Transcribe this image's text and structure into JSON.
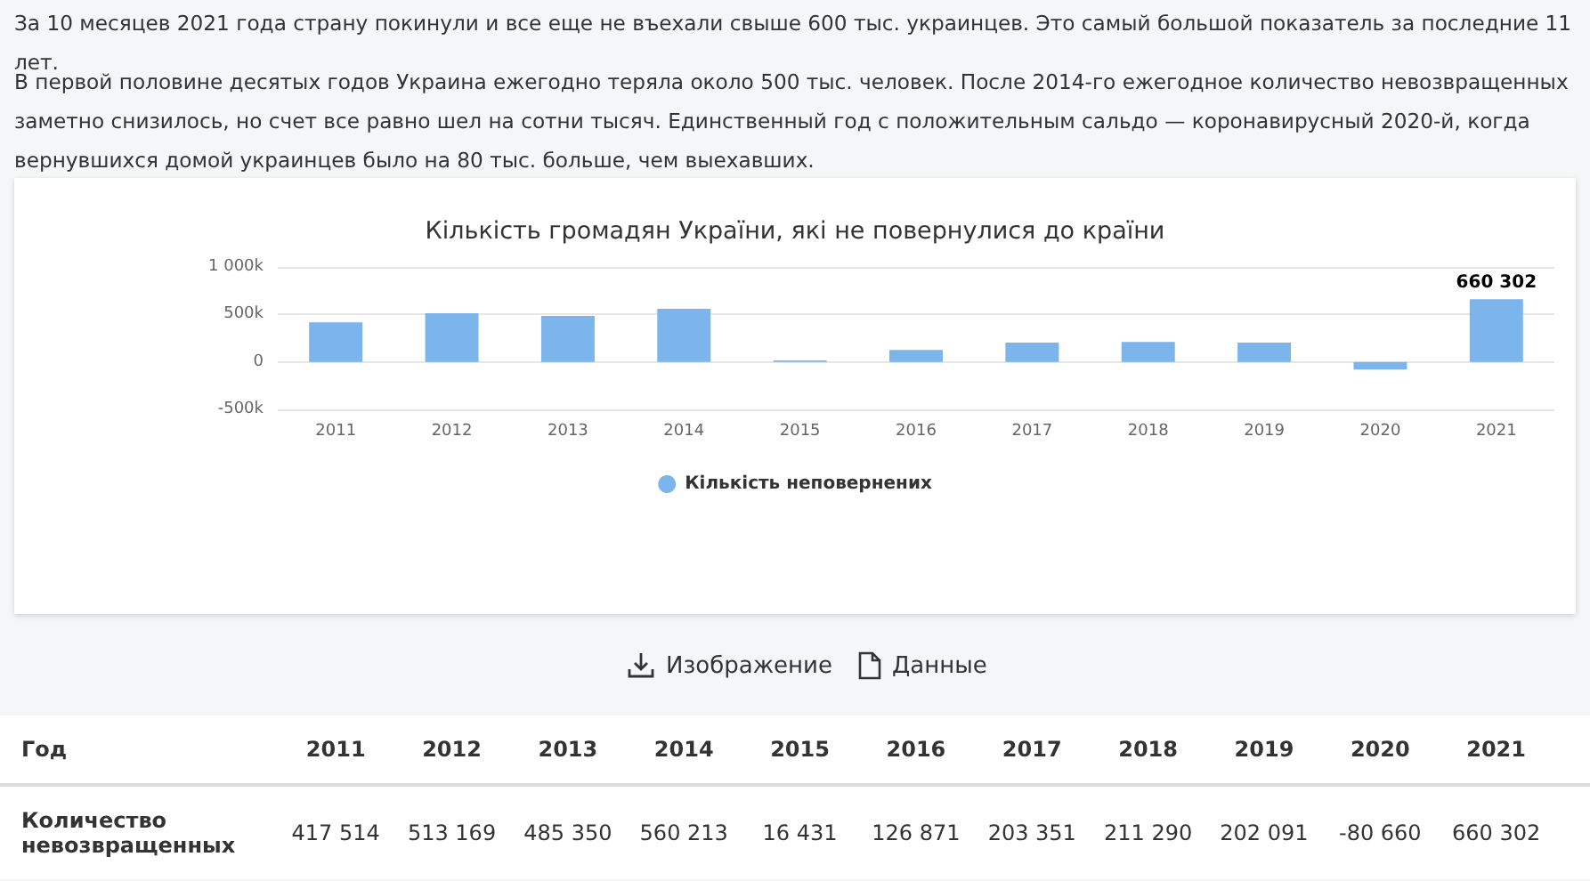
{
  "chart_data": {
    "type": "bar",
    "title": "Кількість громадян України, які не повернулися до країни",
    "categories": [
      "2011",
      "2012",
      "2013",
      "2014",
      "2015",
      "2016",
      "2017",
      "2018",
      "2019",
      "2020",
      "2021"
    ],
    "series": [
      {
        "name": "Кількість неповернених",
        "color": "#7cb5ec",
        "values": [
          417514,
          513169,
          485350,
          560213,
          16431,
          126871,
          203351,
          211290,
          202091,
          -80660,
          660302
        ],
        "value_labels": [
          "417 514",
          "513 169",
          "485 350",
          "560 213",
          "16 431",
          "126 871",
          "203 351",
          "211 290",
          "202 091",
          "-80 660",
          "660 302"
        ]
      }
    ],
    "ylim": [
      -500000,
      1000000
    ],
    "yticks": [
      {
        "value": -500000,
        "label": "-500k"
      },
      0,
      {
        "value": 500000,
        "label": "500k"
      },
      {
        "value": 1000000,
        "label": "1 000k"
      }
    ],
    "grid": "y",
    "legend": "bottom",
    "annotations": [
      "За 10 месяцев 2021 года страну покинули и все еще не въехали свыше 600 тыс. украинцев. Это самый большой показатель за последние 11 лет.",
      "В первой половине десятых годов Украина ежегодно теряла около 500 тыс. человек. После 2014-го ежегодное количество невозвращенных заметно снизилось, но счет все равно шел на сотни тысяч. Единственный год с положительным сальдо — коронавирусный 2020-й, когда вернувшихся домой украинцев было на 80 тыс. больше, чем выехавших.",
      "Изображение",
      "Данные",
      "Год",
      "Количество невозвращенных",
      {
        "text": "660 302",
        "x": "2021",
        "y": 660302
      }
    ]
  }
}
